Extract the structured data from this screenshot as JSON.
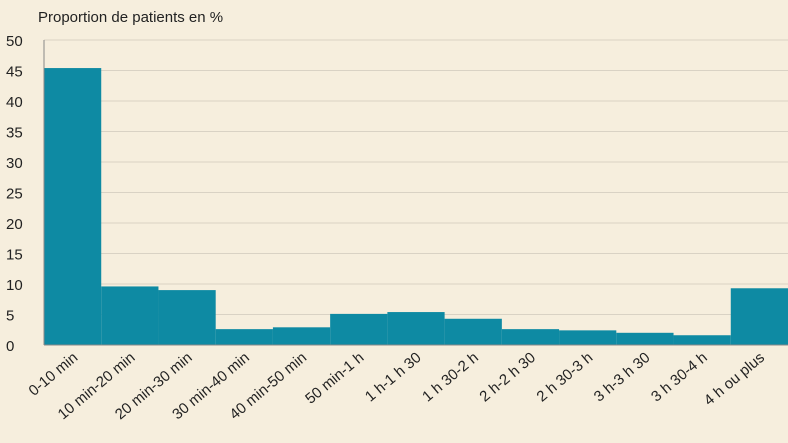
{
  "chart_data": {
    "type": "bar",
    "y_label": "Proportion de patients en %",
    "categories": [
      "0-10 min",
      "10 min-20 min",
      "20 min-30 min",
      "30 min-40 min",
      "40 min-50 min",
      "50 min-1 h",
      "1 h-1 h 30",
      "1 h 30-2 h",
      "2 h-2 h 30",
      "2 h 30-3 h",
      "3 h-3 h 30",
      "3 h 30-4 h",
      "4 h ou plus"
    ],
    "values": [
      45.4,
      9.6,
      9.0,
      2.6,
      2.9,
      5.1,
      5.4,
      4.3,
      2.6,
      2.4,
      2.0,
      1.6,
      9.3
    ],
    "color": "#0e8aa3",
    "ylim": [
      0,
      50
    ],
    "yticks": [
      0,
      5,
      10,
      15,
      20,
      25,
      30,
      35,
      40,
      45,
      50
    ],
    "grid": true
  }
}
